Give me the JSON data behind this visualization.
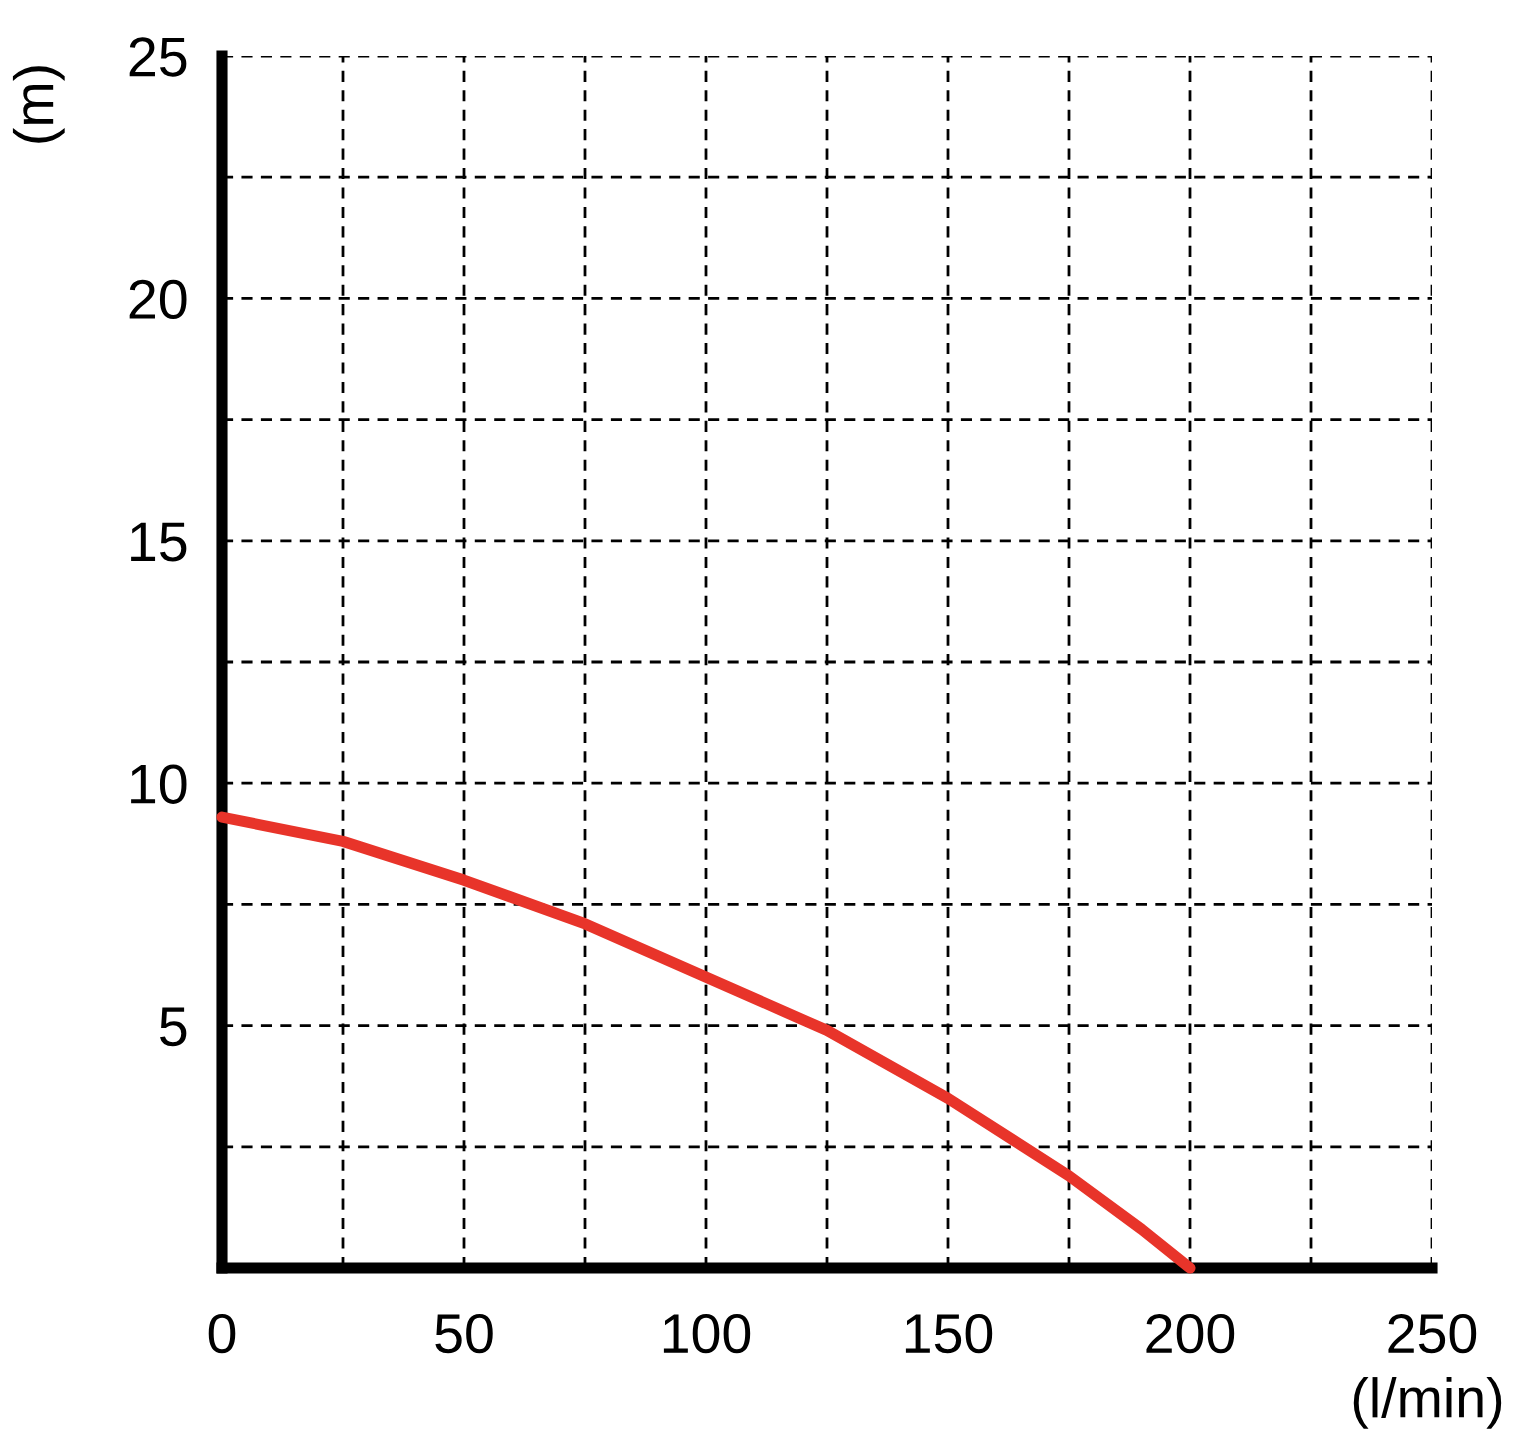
{
  "chart_data": {
    "type": "line",
    "xlabel": "(l/min)",
    "ylabel": "(m)",
    "x": [
      0,
      25,
      50,
      75,
      100,
      125,
      150,
      175,
      190,
      200
    ],
    "series": [
      {
        "color": "#e8342a",
        "values": [
          9.3,
          8.8,
          8.0,
          7.1,
          6.0,
          4.9,
          3.5,
          1.9,
          0.8,
          0
        ]
      }
    ],
    "xlim": [
      0,
      250
    ],
    "ylim": [
      0,
      25
    ],
    "xticks": [
      0,
      {
        "value": 25,
        "label": null
      },
      50,
      {
        "value": 75,
        "label": null
      },
      100,
      {
        "value": 125,
        "label": null
      },
      150,
      {
        "value": 175,
        "label": null
      },
      200,
      {
        "value": 225,
        "label": null
      },
      250
    ],
    "yticks": [
      {
        "value": 0,
        "label": null
      },
      {
        "value": 2.5,
        "label": null
      },
      5,
      {
        "value": 7.5,
        "label": null
      },
      10,
      {
        "value": 12.5,
        "label": null
      },
      15,
      {
        "value": 17.5,
        "label": null
      },
      20,
      {
        "value": 22.5,
        "label": null
      },
      25
    ],
    "grid": true,
    "line_style": "solid",
    "marker": "none"
  }
}
